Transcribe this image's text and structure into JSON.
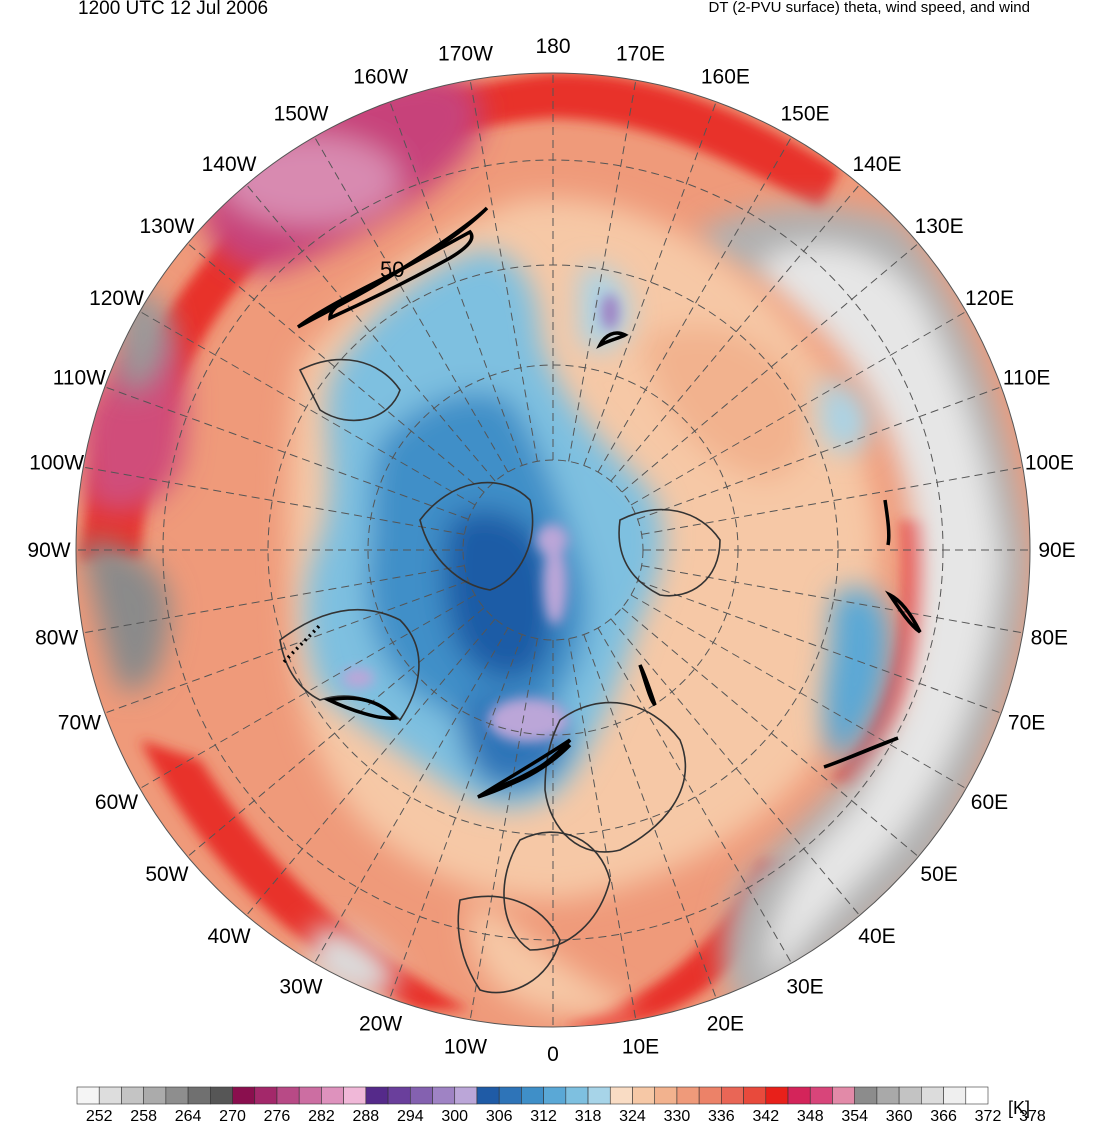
{
  "header": {
    "datetime": "1200 UTC 12 Jul 2006",
    "product": "DT (2-PVU surface) theta, wind speed, and wind"
  },
  "map": {
    "projection": "north-polar-stereographic",
    "center_lon_bottom": 0,
    "longitude_labels": [
      "180",
      "170E",
      "160E",
      "150E",
      "140E",
      "130E",
      "120E",
      "110E",
      "100E",
      "90E",
      "80E",
      "70E",
      "60E",
      "50E",
      "40E",
      "30E",
      "20E",
      "10E",
      "0",
      "10W",
      "20W",
      "30W",
      "40W",
      "50W",
      "60W",
      "70W",
      "80W",
      "90W",
      "100W",
      "110W",
      "120W",
      "130W",
      "140W",
      "150W",
      "160W",
      "170W"
    ],
    "wind_speed_contour_label": "50",
    "colors": {
      "cold_core": "#b59ad8",
      "blue_dark": "#2e6fb4",
      "blue_mid": "#5b9fd0",
      "blue_light": "#a7d4e8",
      "peach": "#f6c8a6",
      "salmon": "#ef9a7a",
      "red": "#e8302a",
      "magenta": "#d04d7a",
      "gray": "#9a9a9a",
      "white": "#f2f2f2"
    }
  },
  "colorbar": {
    "unit": "[K]",
    "tick_labels": [
      "252",
      "258",
      "264",
      "270",
      "276",
      "282",
      "288",
      "294",
      "300",
      "306",
      "312",
      "318",
      "324",
      "330",
      "336",
      "342",
      "348",
      "354",
      "360",
      "366",
      "372",
      "378"
    ],
    "colors": [
      "#f5f5f5",
      "#dddddd",
      "#c4c4c4",
      "#ababab",
      "#8e8e8e",
      "#707070",
      "#565656",
      "#8a0f4e",
      "#a3286a",
      "#b84a86",
      "#cc6ea2",
      "#de92bd",
      "#f0b8d8",
      "#552a8a",
      "#6a3f9c",
      "#8461b0",
      "#9f83c4",
      "#bba6d8",
      "#1f5ba6",
      "#2e74b8",
      "#3f8fc8",
      "#5aa8d6",
      "#7ec0e0",
      "#a7d4e8",
      "#f9dcc4",
      "#f6c8a6",
      "#f2b28e",
      "#ef9a7a",
      "#ec8268",
      "#e96656",
      "#e84a3c",
      "#e8201a",
      "#d4245a",
      "#d8457a",
      "#e28aa8",
      "#8c8c8c",
      "#a9a9a9",
      "#c3c3c3",
      "#dcdcdc",
      "#efefef",
      "#ffffff"
    ]
  }
}
